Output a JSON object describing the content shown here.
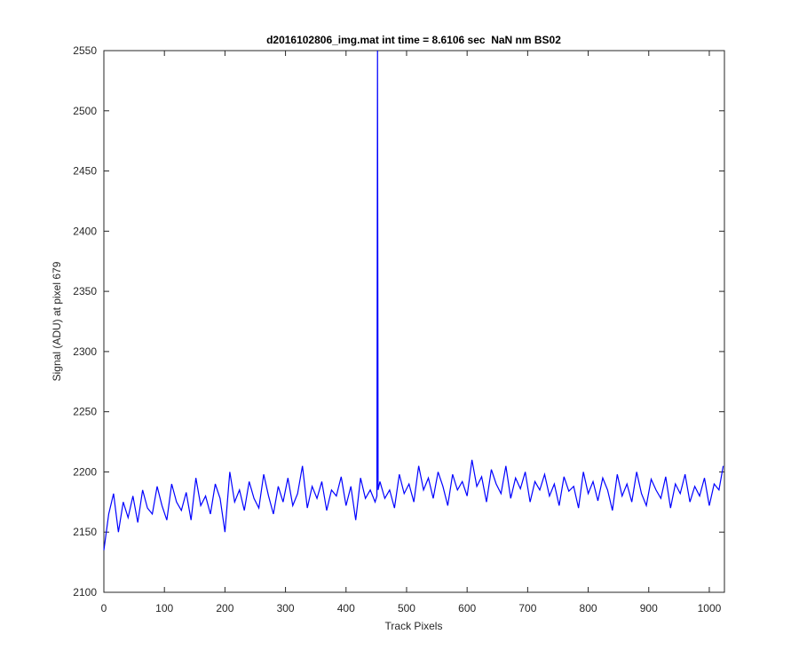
{
  "chart_data": {
    "type": "line",
    "title": "d2016102806_img.mat int time = 8.6106 sec  NaN nm BS02",
    "x_label": "Track Pixels",
    "y_label": "Signal (ADU) at pixel 679",
    "color": "#0000ff",
    "x": [
      0,
      8,
      16,
      24,
      32,
      40,
      48,
      56,
      64,
      72,
      80,
      88,
      96,
      104,
      112,
      120,
      128,
      136,
      144,
      152,
      160,
      168,
      176,
      184,
      192,
      200,
      208,
      216,
      224,
      232,
      240,
      248,
      256,
      264,
      272,
      280,
      288,
      296,
      304,
      312,
      320,
      328,
      336,
      344,
      352,
      360,
      368,
      376,
      384,
      392,
      400,
      408,
      416,
      424,
      432,
      440,
      448,
      451,
      452,
      453,
      456,
      464,
      472,
      480,
      488,
      496,
      504,
      512,
      520,
      528,
      536,
      544,
      552,
      560,
      568,
      576,
      584,
      592,
      600,
      608,
      616,
      624,
      632,
      640,
      648,
      656,
      664,
      672,
      680,
      688,
      696,
      704,
      712,
      720,
      728,
      736,
      744,
      752,
      760,
      768,
      776,
      784,
      792,
      800,
      808,
      816,
      824,
      832,
      840,
      848,
      856,
      864,
      872,
      880,
      888,
      896,
      904,
      912,
      920,
      928,
      936,
      944,
      952,
      960,
      968,
      976,
      984,
      992,
      1000,
      1008,
      1016,
      1023
    ],
    "values": [
      2135,
      2165,
      2182,
      2150,
      2175,
      2162,
      2180,
      2158,
      2185,
      2170,
      2165,
      2188,
      2172,
      2160,
      2190,
      2175,
      2168,
      2183,
      2160,
      2195,
      2172,
      2180,
      2165,
      2190,
      2178,
      2150,
      2200,
      2175,
      2185,
      2168,
      2192,
      2178,
      2170,
      2198,
      2180,
      2165,
      2188,
      2175,
      2195,
      2172,
      2182,
      2205,
      2170,
      2188,
      2178,
      2192,
      2168,
      2185,
      2180,
      2196,
      2172,
      2188,
      2160,
      2195,
      2178,
      2185,
      2175,
      2180,
      2550,
      2185,
      2192,
      2178,
      2185,
      2170,
      2198,
      2182,
      2190,
      2175,
      2205,
      2185,
      2195,
      2178,
      2200,
      2188,
      2172,
      2198,
      2185,
      2192,
      2180,
      2210,
      2188,
      2196,
      2175,
      2202,
      2190,
      2182,
      2205,
      2178,
      2195,
      2186,
      2200,
      2175,
      2192,
      2185,
      2198,
      2180,
      2190,
      2172,
      2196,
      2184,
      2188,
      2170,
      2200,
      2182,
      2192,
      2176,
      2195,
      2185,
      2168,
      2198,
      2180,
      2190,
      2175,
      2200,
      2182,
      2172,
      2194,
      2185,
      2178,
      2196,
      2170,
      2190,
      2182,
      2198,
      2175,
      2188,
      2180,
      2195,
      2172,
      2190,
      2185,
      2205
    ],
    "xlim": [
      0,
      1025
    ],
    "ylim": [
      2100,
      2550
    ],
    "xticks": [
      0,
      100,
      200,
      300,
      400,
      500,
      600,
      700,
      800,
      900,
      1000
    ],
    "yticks": [
      2100,
      2150,
      2200,
      2250,
      2300,
      2350,
      2400,
      2450,
      2500,
      2550
    ]
  }
}
